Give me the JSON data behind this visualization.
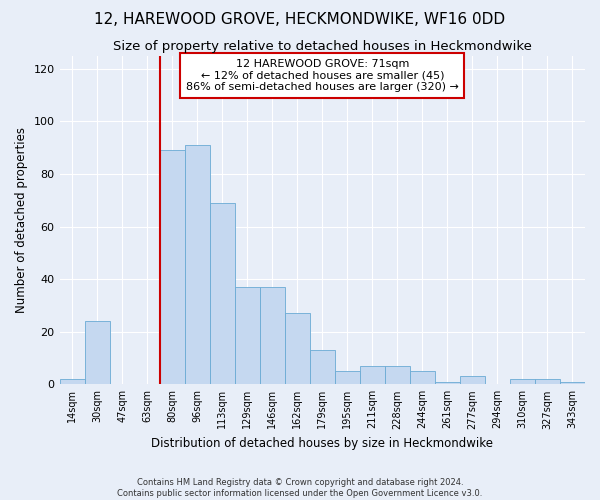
{
  "title": "12, HAREWOOD GROVE, HECKMONDWIKE, WF16 0DD",
  "subtitle": "Size of property relative to detached houses in Heckmondwike",
  "xlabel": "Distribution of detached houses by size in Heckmondwike",
  "ylabel": "Number of detached properties",
  "categories": [
    "14sqm",
    "30sqm",
    "47sqm",
    "63sqm",
    "80sqm",
    "96sqm",
    "113sqm",
    "129sqm",
    "146sqm",
    "162sqm",
    "179sqm",
    "195sqm",
    "211sqm",
    "228sqm",
    "244sqm",
    "261sqm",
    "277sqm",
    "294sqm",
    "310sqm",
    "327sqm",
    "343sqm"
  ],
  "values": [
    2,
    24,
    0,
    0,
    89,
    91,
    69,
    37,
    37,
    27,
    13,
    5,
    7,
    7,
    5,
    1,
    3,
    0,
    2,
    2,
    1
  ],
  "bar_color": "#c5d8f0",
  "bar_edge_color": "#6aaad4",
  "vline_x": 4,
  "vline_color": "#cc0000",
  "annotation_line1": "12 HAREWOOD GROVE: 71sqm",
  "annotation_line2": "← 12% of detached houses are smaller (45)",
  "annotation_line3": "86% of semi-detached houses are larger (320) →",
  "annotation_box_color": "#ffffff",
  "annotation_box_edge_color": "#cc0000",
  "ylim": [
    0,
    125
  ],
  "yticks": [
    0,
    20,
    40,
    60,
    80,
    100,
    120
  ],
  "footer1": "Contains HM Land Registry data © Crown copyright and database right 2024.",
  "footer2": "Contains public sector information licensed under the Open Government Licence v3.0.",
  "bg_color": "#e8eef8",
  "plot_bg_color": "#e8eef8",
  "title_fontsize": 11,
  "subtitle_fontsize": 9.5,
  "grid_color": "#ffffff"
}
